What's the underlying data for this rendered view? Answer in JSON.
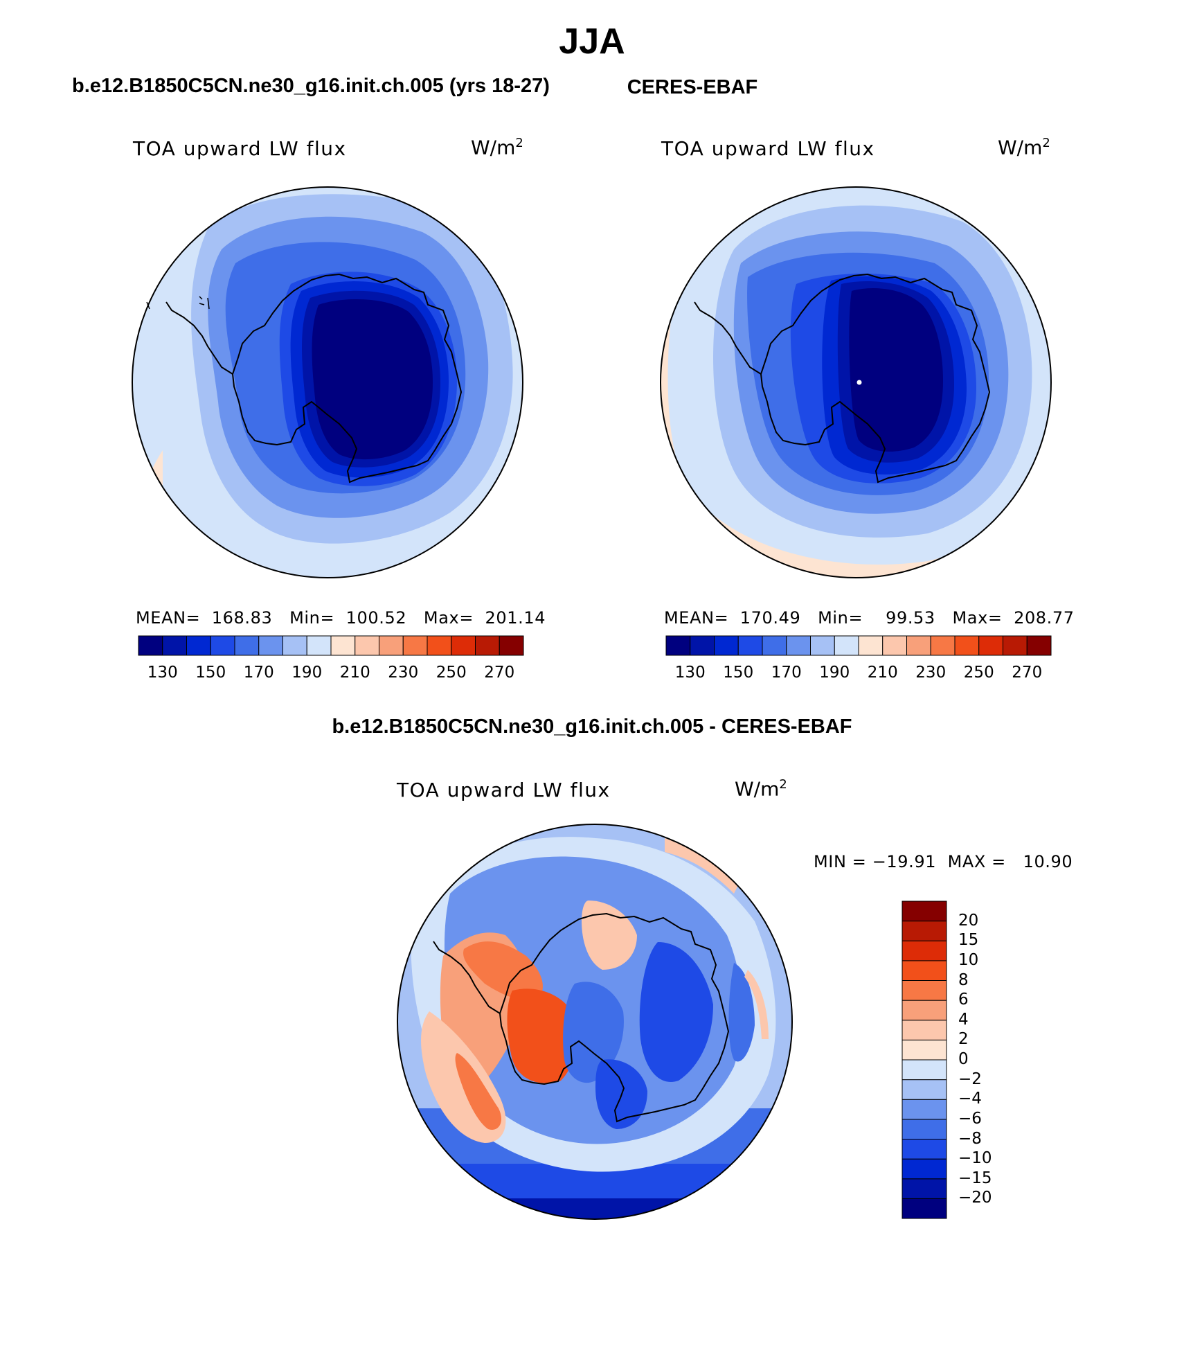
{
  "figure": {
    "title": "JJA",
    "panels": [
      {
        "title": "b.e12.B1850C5CN.ne30_g16.init.ch.005 (yrs 18-27)",
        "variable": "TOA upward LW flux",
        "unit_base": "W/m",
        "unit_exp": "2",
        "stats": {
          "mean": "MEAN=  168.83",
          "min": "Min=  100.52",
          "max": "Max=  201.14"
        }
      },
      {
        "title": "CERES-EBAF",
        "variable": "TOA upward LW flux",
        "unit_base": "W/m",
        "unit_exp": "2",
        "stats": {
          "mean": "MEAN=  170.49",
          "min": "Min=    99.53",
          "max": "Max=  208.77"
        }
      },
      {
        "title": "b.e12.B1850C5CN.ne30_g16.init.ch.005 - CERES-EBAF",
        "variable": "TOA upward LW flux",
        "unit_base": "W/m",
        "unit_exp": "2",
        "stats": {
          "minmax": "MIN = −19.91  MAX =   10.90"
        }
      }
    ]
  },
  "colorbars": {
    "absolute": {
      "colors": [
        "#00007f",
        "#0014a8",
        "#0028d2",
        "#1e4ae6",
        "#3f6ee8",
        "#6b93ee",
        "#a6c1f5",
        "#d3e4fa",
        "#fde4d2",
        "#fcc7ad",
        "#f8a07a",
        "#f77845",
        "#f2501a",
        "#dd2c07",
        "#b81a04",
        "#850000"
      ],
      "tick_labels": [
        "130",
        "150",
        "170",
        "190",
        "210",
        "230",
        "250",
        "270"
      ]
    },
    "difference": {
      "colors": [
        "#00007f",
        "#0014a8",
        "#0028d2",
        "#1e4ae6",
        "#3f6ee8",
        "#6b93ee",
        "#a6c1f5",
        "#d3e4fa",
        "#fde4d2",
        "#fcc7ad",
        "#f8a07a",
        "#f77845",
        "#f2501a",
        "#dd2c07",
        "#b81a04",
        "#850000"
      ],
      "tick_labels": [
        "20",
        "15",
        "10",
        "8",
        "6",
        "4",
        "2",
        "0",
        "−2",
        "−4",
        "−6",
        "−8",
        "−10",
        "−15",
        "−20"
      ]
    }
  }
}
